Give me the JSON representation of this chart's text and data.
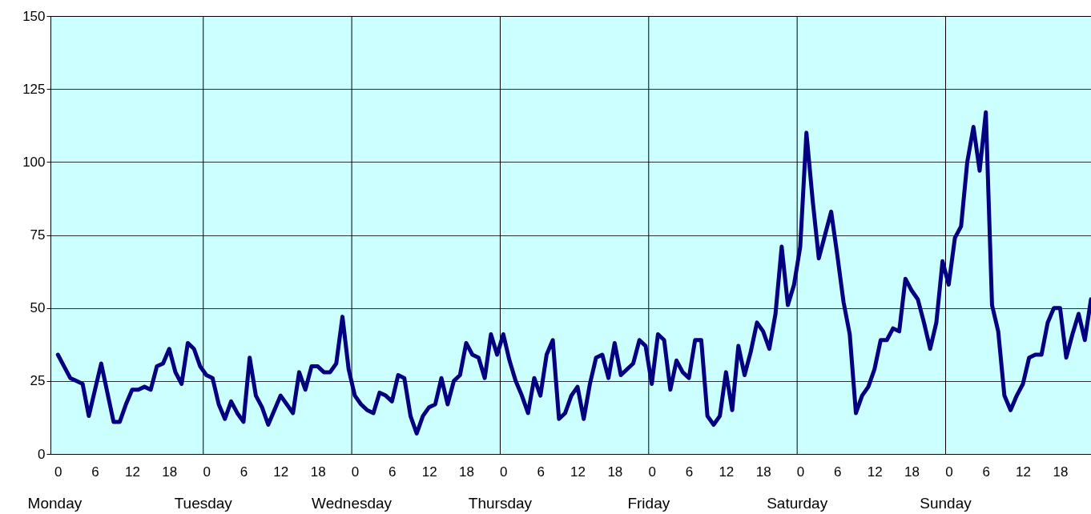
{
  "chart_data": {
    "type": "line",
    "categories": [
      "0",
      null,
      null,
      null,
      null,
      null,
      "6",
      null,
      null,
      null,
      null,
      null,
      "12",
      null,
      null,
      null,
      null,
      null,
      "18",
      null,
      null,
      null,
      null,
      null,
      "0",
      null,
      null,
      null,
      null,
      null,
      "6",
      null,
      null,
      null,
      null,
      null,
      "12",
      null,
      null,
      null,
      null,
      null,
      "18",
      null,
      null,
      null,
      null,
      null,
      "0",
      null,
      null,
      null,
      null,
      null,
      "6",
      null,
      null,
      null,
      null,
      null,
      "12",
      null,
      null,
      null,
      null,
      null,
      "18",
      null,
      null,
      null,
      null,
      null,
      "0",
      null,
      null,
      null,
      null,
      null,
      "6",
      null,
      null,
      null,
      null,
      null,
      "12",
      null,
      null,
      null,
      null,
      null,
      "18",
      null,
      null,
      null,
      null,
      null,
      "0",
      null,
      null,
      null,
      null,
      null,
      "6",
      null,
      null,
      null,
      null,
      null,
      "12",
      null,
      null,
      null,
      null,
      null,
      "18",
      null,
      null,
      null,
      null,
      null,
      "0",
      null,
      null,
      null,
      null,
      null,
      "6",
      null,
      null,
      null,
      null,
      null,
      "12",
      null,
      null,
      null,
      null,
      null,
      "18",
      null,
      null,
      null,
      null,
      null,
      "0",
      null,
      null,
      null,
      null,
      null,
      "6",
      null,
      null,
      null,
      null,
      null,
      "12",
      null,
      null,
      null,
      null,
      null,
      "18",
      null,
      null,
      null,
      null,
      null
    ],
    "series": [
      {
        "color": "#000080",
        "values": [
          34,
          30,
          26,
          25,
          24,
          13,
          22,
          31,
          21,
          11,
          11,
          17,
          22,
          22,
          23,
          22,
          30,
          31,
          36,
          28,
          24,
          38,
          36,
          30,
          27,
          26,
          17,
          12,
          18,
          14,
          11,
          33,
          20,
          16,
          10,
          15,
          20,
          17,
          14,
          28,
          22,
          30,
          30,
          28,
          28,
          31,
          47,
          29,
          20,
          17,
          15,
          14,
          21,
          20,
          18,
          27,
          26,
          13,
          7,
          13,
          16,
          17,
          26,
          17,
          25,
          27,
          38,
          34,
          33,
          26,
          41,
          34,
          41,
          32,
          25,
          20,
          14,
          26,
          20,
          34,
          39,
          12,
          14,
          20,
          23,
          12,
          24,
          33,
          34,
          26,
          38,
          27,
          29,
          31,
          39,
          37,
          24,
          41,
          39,
          22,
          32,
          28,
          26,
          39,
          39,
          13,
          10,
          13,
          28,
          15,
          37,
          27,
          35,
          45,
          42,
          36,
          48,
          71,
          51,
          58,
          71,
          110,
          87,
          67,
          75,
          83,
          68,
          52,
          41,
          14,
          20,
          23,
          29,
          39,
          39,
          43,
          42,
          60,
          56,
          53,
          45,
          36,
          45,
          66,
          58,
          74,
          78,
          100,
          112,
          97,
          117,
          51,
          42,
          20,
          15,
          20,
          24,
          33,
          34,
          34,
          45,
          50,
          50,
          33,
          41,
          48,
          39,
          53
        ]
      }
    ],
    "ylim": [
      0,
      150
    ],
    "yticks": [
      0,
      25,
      50,
      75,
      100,
      125,
      150
    ],
    "grid": "y",
    "annotations": [
      "Monday",
      "Tuesday",
      "Wednesday",
      "Thursday",
      "Friday",
      "Saturday",
      "Sunday"
    ],
    "marker": "none",
    "line_style": "solid"
  }
}
